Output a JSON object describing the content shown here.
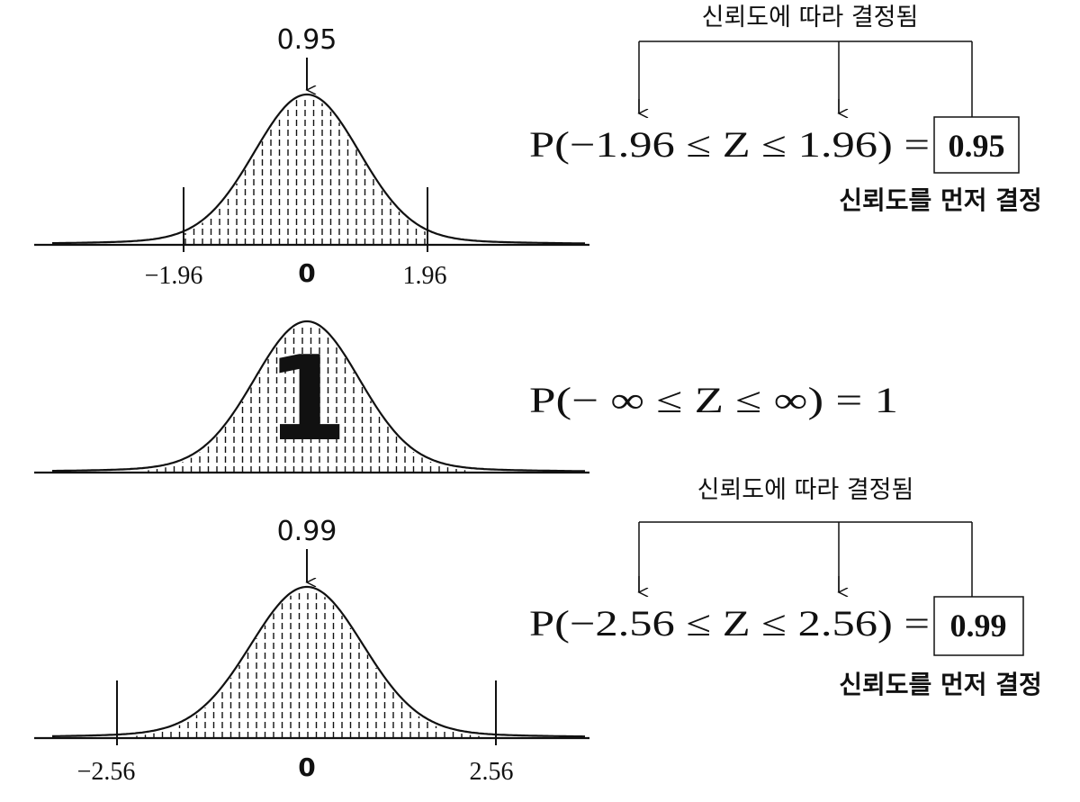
{
  "panels": [
    {
      "area_label": "0.95",
      "axis_labels": [
        "−1.96",
        "0",
        "1.96"
      ],
      "note_top": "신뢰도에 따라 결정됨",
      "formula": "P(−1.96 ≤ Z ≤ 1.96) =",
      "boxed": "0.95",
      "note_bottom": "신뢰도를 먼저 결정"
    },
    {
      "center_label": "1",
      "formula": "P(− ∞ ≤ Z ≤ ∞) = 1"
    },
    {
      "area_label": "0.99",
      "axis_labels": [
        "−2.56",
        "0",
        "2.56"
      ],
      "note_top": "신뢰도에 따라 결정됨",
      "formula": "P(−2.56 ≤ Z ≤ 2.56) =",
      "boxed": "0.99",
      "note_bottom": "신뢰도를 먼저 결정"
    }
  ]
}
